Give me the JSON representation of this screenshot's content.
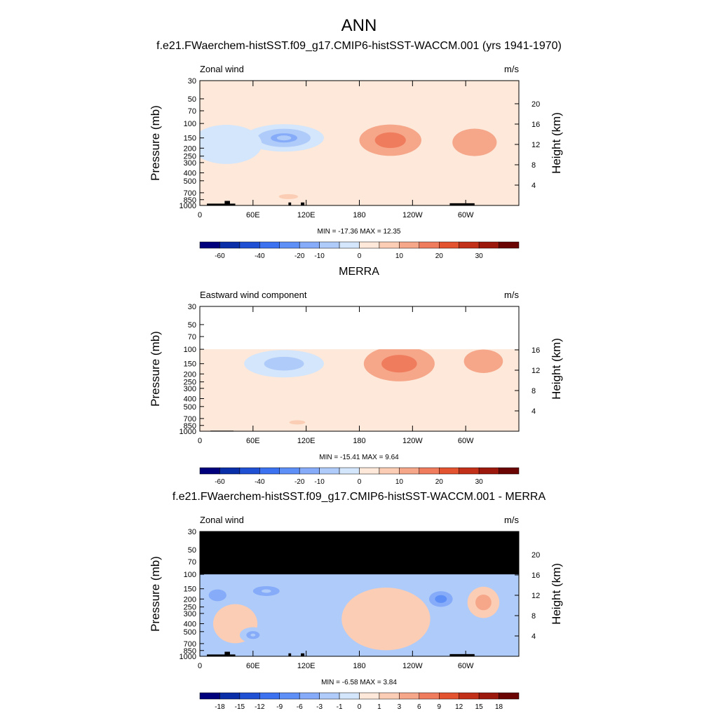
{
  "figure": {
    "title": "ANN",
    "colors": {
      "default_levels": [
        "#00007d",
        "#0a2ea8",
        "#1f50d3",
        "#3c72f0",
        "#5e8ff7",
        "#86acf9",
        "#afcbf9",
        "#d4e6fb",
        "#fde8d9",
        "#fbcdb4",
        "#f6a689",
        "#f07c5e",
        "#e3532f",
        "#c33019",
        "#9d180c",
        "#6b0504"
      ],
      "diff_levels": [
        "#00007d",
        "#0a2ea8",
        "#1f50d3",
        "#3c72f0",
        "#5e8ff7",
        "#86acf9",
        "#afcbf9",
        "#d4e6fb",
        "#fde8d9",
        "#fbcdb4",
        "#f6a689",
        "#f07c5e",
        "#e3532f",
        "#c33019",
        "#9d180c",
        "#6b0504"
      ],
      "missing": "#000000",
      "terrain": "#000000"
    }
  },
  "chart_data": [
    {
      "type": "heatmap",
      "panel": "model",
      "title": "f.e21.FWaerchem-histSST.f09_g17.CMIP6-histSST-WACCM.001 (yrs 1941-1970)",
      "left_label": "Zonal wind",
      "units": "m/s",
      "ylabel": "Pressure (mb)",
      "y2label": "Height (km)",
      "xticks": [
        "0",
        "60E",
        "120E",
        "180",
        "120W",
        "60W"
      ],
      "xtick_lon": [
        0,
        60,
        120,
        180,
        240,
        300
      ],
      "x_range": [
        0,
        360
      ],
      "yticks": [
        "30",
        "50",
        "70",
        "100",
        "150",
        "200",
        "250",
        "300",
        "400",
        "500",
        "700",
        "850",
        "1000"
      ],
      "y2ticks": [
        "20",
        "16",
        "12",
        "8",
        "4"
      ],
      "y2tick_km": [
        20,
        16,
        12,
        8,
        4
      ],
      "p_range": [
        30,
        1000
      ],
      "data_top_p": 30,
      "missing_above_p": null,
      "min_max_text": "MIN = -17.36  MAX =  12.35",
      "min": -17.36,
      "max": 12.35,
      "contour_levels": [
        -70,
        -60,
        -50,
        -40,
        -30,
        -20,
        -15,
        -10,
        -5,
        0,
        5,
        10,
        15,
        20,
        25,
        30,
        35
      ],
      "colorbar_labels": [
        "-60",
        "-40",
        "-20",
        "-10",
        "0",
        "10",
        "20",
        "30"
      ],
      "features": [
        {
          "lon": 95,
          "p": 150,
          "value": -15,
          "width_lon": 45,
          "height_lp": 0.35
        },
        {
          "lon": 215,
          "p": 160,
          "value": 12,
          "width_lon": 35,
          "height_lp": 0.4
        },
        {
          "lon": 310,
          "p": 170,
          "value": 9,
          "width_lon": 25,
          "height_lp": 0.35
        },
        {
          "lon": 30,
          "p": 180,
          "value": -6,
          "width_lon": 40,
          "height_lp": 0.5
        },
        {
          "lon": 300,
          "p": 300,
          "value": -4,
          "width_lon": 20,
          "height_lp": 0.5
        },
        {
          "lon": 100,
          "p": 780,
          "value": 4,
          "width_lon": 60,
          "height_lp": 0.35
        }
      ],
      "terrain": [
        {
          "lon0": 8,
          "lon1": 40,
          "p_top": 950
        },
        {
          "lon0": 28,
          "lon1": 34,
          "p_top": 880
        },
        {
          "lon0": 100,
          "lon1": 103,
          "p_top": 920
        },
        {
          "lon0": 114,
          "lon1": 118,
          "p_top": 920
        },
        {
          "lon0": 282,
          "lon1": 310,
          "p_top": 940
        }
      ]
    },
    {
      "type": "heatmap",
      "panel": "obs",
      "title": "MERRA",
      "left_label": "Eastward wind component",
      "units": "m/s",
      "ylabel": "Pressure (mb)",
      "y2label": "Height (km)",
      "xticks": [
        "0",
        "60E",
        "120E",
        "180",
        "120W",
        "60W"
      ],
      "xtick_lon": [
        0,
        60,
        120,
        180,
        240,
        300
      ],
      "x_range": [
        0,
        360
      ],
      "yticks": [
        "30",
        "50",
        "70",
        "100",
        "150",
        "200",
        "250",
        "300",
        "400",
        "500",
        "700",
        "850",
        "1000"
      ],
      "y2ticks": [
        "16",
        "12",
        "8",
        "4"
      ],
      "y2tick_km": [
        16,
        12,
        8,
        4
      ],
      "p_range": [
        30,
        1000
      ],
      "data_top_p": 100,
      "missing_above_p": null,
      "min_max_text": "MIN = -15.41  MAX =   9.64",
      "min": -15.41,
      "max": 9.64,
      "contour_levels": [
        -70,
        -60,
        -50,
        -40,
        -30,
        -20,
        -15,
        -10,
        -5,
        0,
        5,
        10,
        15,
        20,
        25,
        30,
        35
      ],
      "colorbar_labels": [
        "-60",
        "-40",
        "-20",
        "-10",
        "0",
        "10",
        "20",
        "30"
      ],
      "features": [
        {
          "lon": 95,
          "p": 150,
          "value": -13,
          "width_lon": 45,
          "height_lp": 0.35
        },
        {
          "lon": 225,
          "p": 150,
          "value": 10,
          "width_lon": 40,
          "height_lp": 0.45
        },
        {
          "lon": 320,
          "p": 140,
          "value": 7,
          "width_lon": 22,
          "height_lp": 0.3
        },
        {
          "lon": 50,
          "p": 250,
          "value": -4,
          "width_lon": 50,
          "height_lp": 0.6
        },
        {
          "lon": 110,
          "p": 780,
          "value": 3,
          "width_lon": 50,
          "height_lp": 0.3
        }
      ],
      "terrain": [
        {
          "lon0": 12,
          "lon1": 38,
          "p_top": 985
        },
        {
          "lon0": 282,
          "lon1": 288,
          "p_top": 990
        }
      ]
    },
    {
      "type": "heatmap",
      "panel": "diff",
      "title": "f.e21.FWaerchem-histSST.f09_g17.CMIP6-histSST-WACCM.001 - MERRA",
      "left_label": "Zonal wind",
      "units": "m/s",
      "ylabel": "Pressure (mb)",
      "y2label": "Height (km)",
      "xticks": [
        "0",
        "60E",
        "120E",
        "180",
        "120W",
        "60W"
      ],
      "xtick_lon": [
        0,
        60,
        120,
        180,
        240,
        300
      ],
      "x_range": [
        0,
        360
      ],
      "yticks": [
        "30",
        "50",
        "70",
        "100",
        "150",
        "200",
        "250",
        "300",
        "400",
        "500",
        "700",
        "850",
        "1000"
      ],
      "y2ticks": [
        "20",
        "16",
        "12",
        "8",
        "4"
      ],
      "y2tick_km": [
        20,
        16,
        12,
        8,
        4
      ],
      "p_range": [
        30,
        1000
      ],
      "data_top_p": 30,
      "missing_above_p": 100,
      "min_max_text": "MIN =  -6.58  MAX =   3.84",
      "min": -6.58,
      "max": 3.84,
      "contour_levels": [
        -21,
        -18,
        -15,
        -12,
        -9,
        -6,
        -3,
        -1,
        0,
        1,
        3,
        6,
        9,
        12,
        15,
        18,
        21
      ],
      "colorbar_labels": [
        "-18",
        "-15",
        "-12",
        "-9",
        "-6",
        "-3",
        "-1",
        "0",
        "1",
        "3",
        "6",
        "9",
        "12",
        "15",
        "18"
      ],
      "features": [
        {
          "lon": 272,
          "p": 200,
          "value": -6.5,
          "width_lon": 20,
          "height_lp": 0.3
        },
        {
          "lon": 20,
          "p": 180,
          "value": -4,
          "width_lon": 20,
          "height_lp": 0.3
        },
        {
          "lon": 75,
          "p": 160,
          "value": -3,
          "width_lon": 30,
          "height_lp": 0.25
        },
        {
          "lon": 320,
          "p": 220,
          "value": 3.5,
          "width_lon": 18,
          "height_lp": 0.4
        },
        {
          "lon": 210,
          "p": 350,
          "value": 2,
          "width_lon": 50,
          "height_lp": 0.8
        },
        {
          "lon": 40,
          "p": 400,
          "value": 2.5,
          "width_lon": 25,
          "height_lp": 0.5
        },
        {
          "lon": 60,
          "p": 550,
          "value": -3,
          "width_lon": 15,
          "height_lp": 0.2
        },
        {
          "lon": 120,
          "p": 500,
          "value": -2,
          "width_lon": 20,
          "height_lp": 0.3
        },
        {
          "lon": 330,
          "p": 700,
          "value": -1.5,
          "width_lon": 25,
          "height_lp": 0.3
        }
      ],
      "terrain": [
        {
          "lon0": 8,
          "lon1": 40,
          "p_top": 950
        },
        {
          "lon0": 28,
          "lon1": 34,
          "p_top": 880
        },
        {
          "lon0": 100,
          "lon1": 103,
          "p_top": 920
        },
        {
          "lon0": 114,
          "lon1": 118,
          "p_top": 920
        },
        {
          "lon0": 282,
          "lon1": 310,
          "p_top": 940
        }
      ]
    }
  ]
}
